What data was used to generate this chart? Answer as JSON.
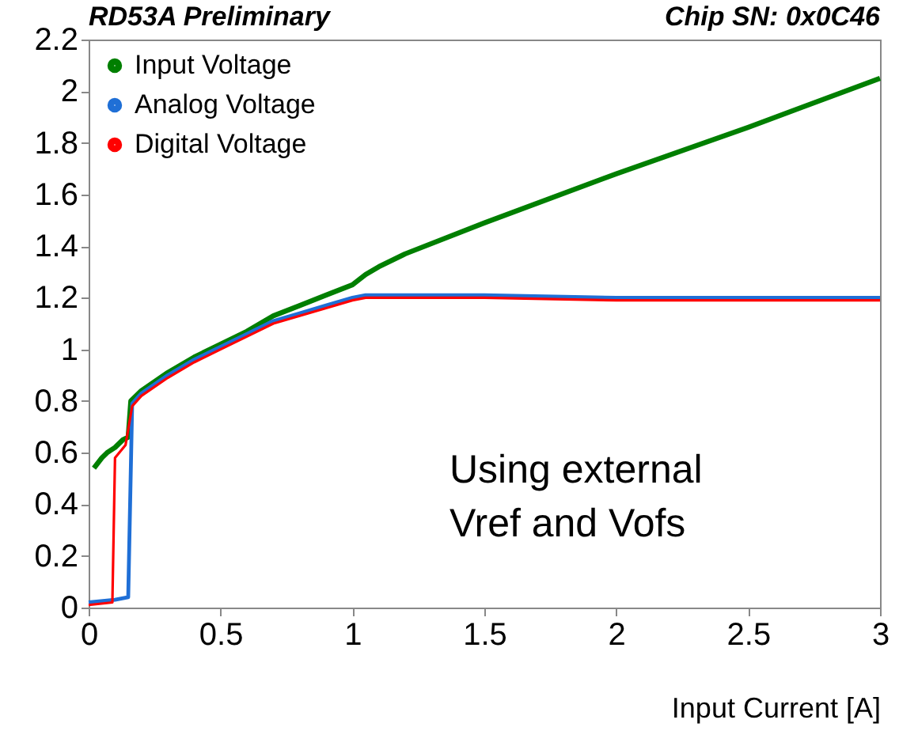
{
  "chart_data": {
    "type": "line",
    "title": "RD53A Preliminary",
    "subtitle": "Chip SN: 0x0C46",
    "xlabel": "Input Current [A]",
    "annotations": [
      "Using external\nVref and Vofs"
    ],
    "xlim": [
      0,
      3
    ],
    "xticks": [
      0,
      0.5,
      1,
      1.5,
      2,
      2.5,
      3
    ],
    "ylim": [
      0,
      2.2
    ],
    "yticks": [
      0,
      0.2,
      0.4,
      0.6,
      0.8,
      1,
      1.2,
      1.4,
      1.6,
      1.8,
      2,
      2.2
    ],
    "grid": false,
    "legend": "top left",
    "marker": "none",
    "line_style": "solid",
    "series": [
      {
        "name": "Input Voltage",
        "color": "#007f00",
        "x": [
          0.02,
          0.05,
          0.07,
          0.1,
          0.13,
          0.15,
          0.16,
          0.2,
          0.3,
          0.4,
          0.5,
          0.6,
          0.7,
          0.8,
          0.9,
          1.0,
          1.05,
          1.1,
          1.2,
          1.5,
          2.0,
          2.5,
          3.0
        ],
        "values": [
          0.54,
          0.58,
          0.6,
          0.62,
          0.65,
          0.66,
          0.8,
          0.84,
          0.91,
          0.97,
          1.02,
          1.07,
          1.13,
          1.17,
          1.21,
          1.25,
          1.29,
          1.32,
          1.37,
          1.49,
          1.68,
          1.86,
          2.05
        ]
      },
      {
        "name": "Analog Voltage",
        "color": "#1f6fd6",
        "x": [
          0.0,
          0.1,
          0.15,
          0.165,
          0.2,
          0.3,
          0.4,
          0.5,
          0.6,
          0.7,
          0.8,
          0.9,
          1.0,
          1.05,
          1.5,
          2.0,
          2.5,
          3.0
        ],
        "values": [
          0.02,
          0.03,
          0.04,
          0.79,
          0.83,
          0.9,
          0.96,
          1.01,
          1.06,
          1.11,
          1.14,
          1.17,
          1.2,
          1.21,
          1.21,
          1.2,
          1.2,
          1.2
        ]
      },
      {
        "name": "Digital Voltage",
        "color": "#ff0000",
        "x": [
          0.0,
          0.09,
          0.1,
          0.14,
          0.165,
          0.2,
          0.3,
          0.4,
          0.5,
          0.6,
          0.7,
          0.8,
          0.9,
          1.0,
          1.05,
          1.5,
          2.0,
          2.5,
          3.0
        ],
        "values": [
          0.01,
          0.02,
          0.58,
          0.63,
          0.78,
          0.82,
          0.89,
          0.95,
          1.0,
          1.05,
          1.1,
          1.13,
          1.16,
          1.19,
          1.2,
          1.2,
          1.19,
          1.19,
          1.19
        ]
      }
    ]
  }
}
